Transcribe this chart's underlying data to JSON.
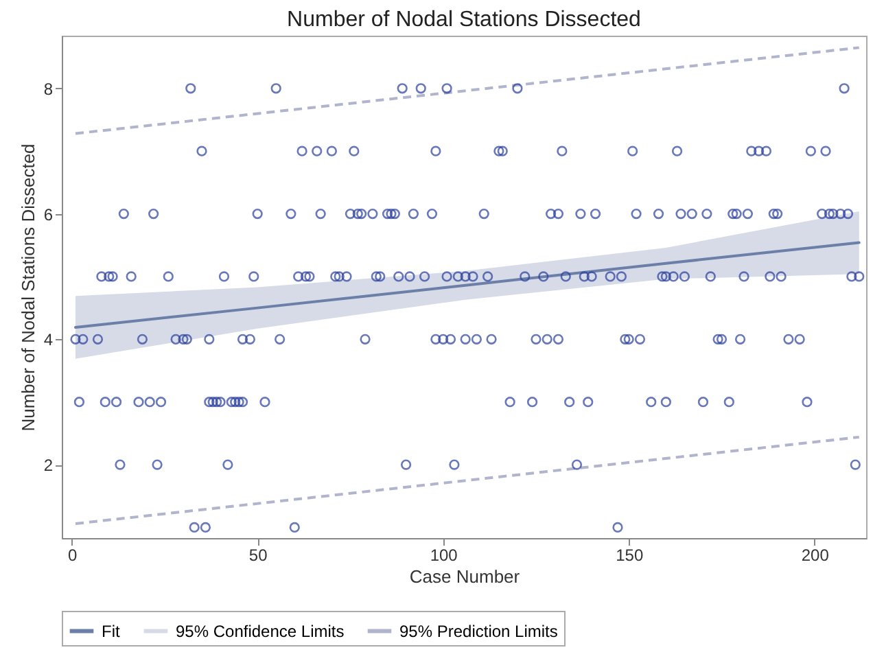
{
  "chart_data": {
    "type": "scatter",
    "title": "Number of Nodal Stations Dissected",
    "xlabel": "Case Number",
    "ylabel": "Number of Nodal Stations Dissected",
    "xlim": [
      -2.7,
      213.9
    ],
    "ylim": [
      0.83,
      8.84
    ],
    "xticks": [
      0,
      50,
      100,
      150,
      200
    ],
    "yticks": [
      2,
      4,
      6,
      8
    ],
    "grid": false,
    "legend": "bottom",
    "annotations": [
      "95% Confidence Limits"
    ],
    "series": [
      {
        "marker": "circle",
        "color": "#2a3f9e",
        "x": [
          32,
          55,
          89,
          94,
          101,
          120,
          208,
          35,
          62,
          66,
          70,
          76,
          98,
          115,
          116,
          132,
          151,
          163,
          183,
          185,
          187,
          199,
          203,
          14,
          22,
          50,
          59,
          67,
          75,
          77,
          78,
          81,
          85,
          86,
          87,
          92,
          97,
          111,
          129,
          131,
          137,
          141,
          152,
          158,
          164,
          167,
          171,
          178,
          179,
          182,
          189,
          190,
          202,
          204,
          205,
          207,
          209,
          8,
          10,
          11,
          16,
          26,
          41,
          49,
          61,
          63,
          64,
          71,
          72,
          74,
          82,
          83,
          88,
          91,
          95,
          101,
          104,
          106,
          108,
          112,
          122,
          127,
          133,
          138,
          140,
          145,
          148,
          159,
          160,
          162,
          165,
          172,
          181,
          188,
          191,
          210,
          212,
          1,
          3,
          7,
          19,
          28,
          30,
          31,
          37,
          46,
          48,
          56,
          79,
          98,
          100,
          102,
          106,
          109,
          113,
          125,
          128,
          131,
          149,
          150,
          153,
          174,
          175,
          180,
          193,
          196,
          2,
          9,
          12,
          18,
          21,
          24,
          37,
          38,
          39,
          40,
          43,
          44,
          45,
          46,
          52,
          118,
          124,
          134,
          139,
          156,
          160,
          170,
          177,
          198,
          13,
          23,
          42,
          90,
          103,
          136,
          211,
          33,
          36,
          60,
          147
        ],
        "values": [
          8,
          8,
          8,
          8,
          8,
          8,
          8,
          7,
          7,
          7,
          7,
          7,
          7,
          7,
          7,
          7,
          7,
          7,
          7,
          7,
          7,
          7,
          7,
          6,
          6,
          6,
          6,
          6,
          6,
          6,
          6,
          6,
          6,
          6,
          6,
          6,
          6,
          6,
          6,
          6,
          6,
          6,
          6,
          6,
          6,
          6,
          6,
          6,
          6,
          6,
          6,
          6,
          6,
          6,
          6,
          6,
          6,
          5,
          5,
          5,
          5,
          5,
          5,
          5,
          5,
          5,
          5,
          5,
          5,
          5,
          5,
          5,
          5,
          5,
          5,
          5,
          5,
          5,
          5,
          5,
          5,
          5,
          5,
          5,
          5,
          5,
          5,
          5,
          5,
          5,
          5,
          5,
          5,
          5,
          5,
          5,
          5,
          4,
          4,
          4,
          4,
          4,
          4,
          4,
          4,
          4,
          4,
          4,
          4,
          4,
          4,
          4,
          4,
          4,
          4,
          4,
          4,
          4,
          4,
          4,
          4,
          4,
          4,
          4,
          4,
          4,
          3,
          3,
          3,
          3,
          3,
          3,
          3,
          3,
          3,
          3,
          3,
          3,
          3,
          3,
          3,
          3,
          3,
          3,
          3,
          3,
          3,
          3,
          3,
          3,
          2,
          2,
          2,
          2,
          2,
          2,
          2,
          1,
          1,
          1,
          1
        ]
      },
      {
        "type": "line",
        "name": "Fit",
        "marker": "none",
        "color": "#6b7fa8",
        "line_style": "solid",
        "x": [
          1,
          50,
          106,
          160,
          212
        ],
        "values": [
          4.19,
          4.5,
          4.86,
          5.21,
          5.54
        ],
        "lower": [
          3.69,
          4.17,
          4.63,
          4.96,
          5.04
        ],
        "upper": [
          4.69,
          4.83,
          5.09,
          5.46,
          6.04
        ]
      },
      {
        "type": "line",
        "name": "95% Prediction Limits",
        "marker": "none",
        "color": "#b0b4cc",
        "line_style": "dashed",
        "x": [
          1,
          212
        ],
        "values": [
          7.28,
          8.65
        ]
      },
      {
        "type": "line",
        "marker": "none",
        "color": "#b0b4cc",
        "line_style": "dashed",
        "x": [
          1,
          212
        ],
        "values": [
          1.06,
          2.44
        ]
      }
    ]
  }
}
